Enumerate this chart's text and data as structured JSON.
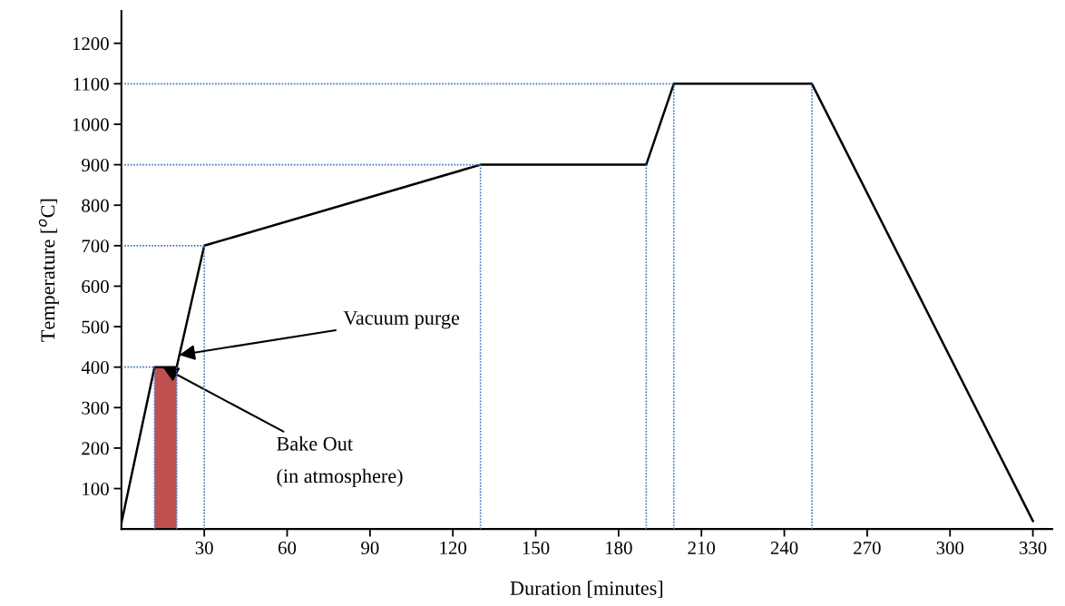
{
  "chart_data": {
    "type": "line",
    "xlabel": "Duration [minutes]",
    "ylabel": "Temperature [$^{o}$C]",
    "xlim": [
      0,
      337
    ],
    "ylim": [
      0,
      1280
    ],
    "xticks": [
      30,
      60,
      90,
      120,
      150,
      180,
      210,
      240,
      270,
      300,
      330
    ],
    "yticks": [
      100,
      200,
      300,
      400,
      500,
      600,
      700,
      800,
      900,
      1000,
      1100,
      1200
    ],
    "grid": false,
    "marker": "none",
    "series": [
      {
        "type": "area",
        "color": "#c0504d",
        "x": [
          12,
          20
        ],
        "values": [
          400,
          400
        ]
      },
      {
        "color": "#4472c4",
        "line_style": "dotted",
        "x": [
          0,
          12
        ],
        "values": [
          400,
          400
        ]
      },
      {
        "color": "#4472c4",
        "line_style": "dotted",
        "x": [
          12,
          12
        ],
        "values": [
          0,
          400
        ]
      },
      {
        "color": "#4472c4",
        "line_style": "dotted",
        "x": [
          20,
          20
        ],
        "values": [
          0,
          400
        ]
      },
      {
        "color": "#4472c4",
        "line_style": "dotted",
        "x": [
          0,
          30
        ],
        "values": [
          700,
          700
        ]
      },
      {
        "color": "#4472c4",
        "line_style": "dotted",
        "x": [
          30,
          30
        ],
        "values": [
          0,
          700
        ]
      },
      {
        "color": "#4472c4",
        "line_style": "dotted",
        "x": [
          0,
          130
        ],
        "values": [
          900,
          900
        ]
      },
      {
        "color": "#4472c4",
        "line_style": "dotted",
        "x": [
          130,
          130
        ],
        "values": [
          0,
          900
        ]
      },
      {
        "color": "#4472c4",
        "line_style": "dotted",
        "x": [
          190,
          190
        ],
        "values": [
          0,
          900
        ]
      },
      {
        "color": "#4472c4",
        "line_style": "dotted",
        "x": [
          0,
          200
        ],
        "values": [
          1100,
          1100
        ]
      },
      {
        "color": "#4472c4",
        "line_style": "dotted",
        "x": [
          200,
          200
        ],
        "values": [
          0,
          1100
        ]
      },
      {
        "color": "#4472c4",
        "line_style": "dotted",
        "x": [
          250,
          250
        ],
        "values": [
          0,
          1100
        ]
      },
      {
        "color": "#000000",
        "line_style": "solid",
        "x": [
          0,
          12,
          20,
          30,
          130,
          190,
          200,
          250,
          330
        ],
        "values": [
          15,
          400,
          400,
          700,
          900,
          900,
          1100,
          1100,
          20
        ]
      }
    ],
    "annotations": [
      {
        "text": "Vacuum purge",
        "x": 21,
        "y": 430
      },
      {
        "text": "Bake Out\n(in atmosphere)",
        "x": 15,
        "y": 400
      }
    ]
  }
}
